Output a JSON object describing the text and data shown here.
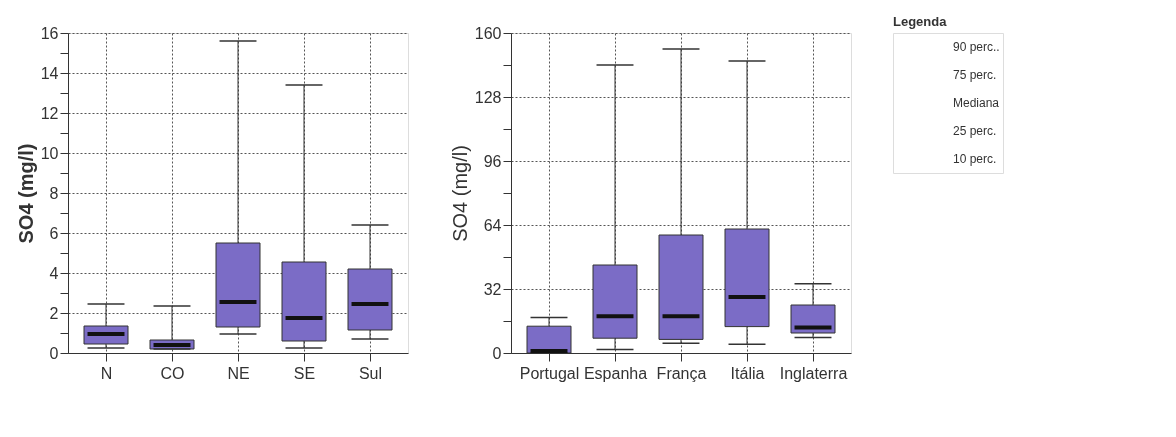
{
  "chart_data": [
    {
      "type": "box",
      "ylabel": "SO4 (mg/l)",
      "categories": [
        "N",
        "CO",
        "NE",
        "SE",
        "Sul"
      ],
      "ylim": [
        0,
        16
      ],
      "yticks": [
        0,
        {
          "value": 1,
          "label": null
        },
        2,
        {
          "value": 3,
          "label": null
        },
        4,
        {
          "value": 5,
          "label": null
        },
        6,
        {
          "value": 7,
          "label": null
        },
        8,
        {
          "value": 9,
          "label": null
        },
        10,
        {
          "value": 11,
          "label": null
        },
        12,
        {
          "value": 13,
          "label": null
        },
        14,
        {
          "value": 15,
          "label": null
        },
        16
      ],
      "grid": true,
      "series": [
        {
          "color": "#7b6cc6",
          "boxes": [
            {
              "low": 0.25,
              "q1": 0.45,
              "median": 0.95,
              "q3": 1.35,
              "high": 2.45
            },
            {
              "low": 0.2,
              "q1": 0.2,
              "median": 0.4,
              "q3": 0.65,
              "high": 2.35
            },
            {
              "low": 0.95,
              "q1": 1.3,
              "median": 2.55,
              "q3": 5.5,
              "high": 15.6
            },
            {
              "low": 0.25,
              "q1": 0.6,
              "median": 1.75,
              "q3": 4.55,
              "high": 13.4
            },
            {
              "low": 0.7,
              "q1": 1.15,
              "median": 2.45,
              "q3": 4.2,
              "high": 6.4
            }
          ]
        }
      ]
    },
    {
      "type": "box",
      "ylabel": "SO4 (mg/l)",
      "categories": [
        "Portugal",
        "Espanha",
        "França",
        "Itália",
        "Inglaterra"
      ],
      "ylim": [
        0,
        160
      ],
      "yticks": [
        0,
        {
          "value": 16,
          "label": null
        },
        32,
        {
          "value": 48,
          "label": null
        },
        64,
        {
          "value": 80,
          "label": null
        },
        96,
        {
          "value": 112,
          "label": null
        },
        128,
        {
          "value": 144,
          "label": null
        },
        160
      ],
      "grid": true,
      "series": [
        {
          "color": "#7b6cc6",
          "boxes": [
            {
              "low": 0,
              "q1": 0,
              "median": 1,
              "q3": 13.4,
              "high": 17.8
            },
            {
              "low": 1.8,
              "q1": 7.4,
              "median": 18.4,
              "q3": 44,
              "high": 144
            },
            {
              "low": 4.9,
              "q1": 6.8,
              "median": 18.4,
              "q3": 59,
              "high": 152
            },
            {
              "low": 4.4,
              "q1": 13.2,
              "median": 28,
              "q3": 62,
              "high": 146
            },
            {
              "low": 7.8,
              "q1": 10,
              "median": 12.8,
              "q3": 24,
              "high": 34.6
            }
          ]
        }
      ]
    },
    {
      "type": "other",
      "title": "Legenda",
      "annotations": [
        "90 perc..",
        "75 perc.",
        "Mediana",
        "25 perc.",
        "10 perc."
      ]
    }
  ]
}
